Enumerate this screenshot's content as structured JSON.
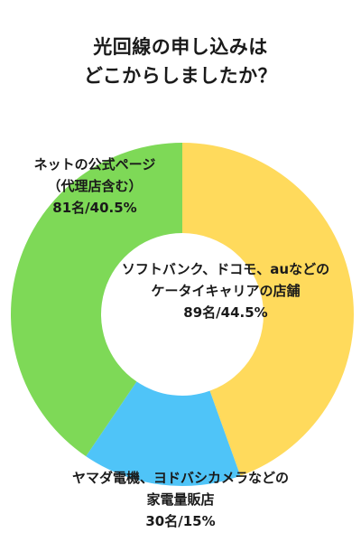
{
  "chart_data": {
    "type": "pie",
    "title_lines": [
      "光回線の申し込みは",
      "どこからしましたか？"
    ],
    "donut": true,
    "start_angle_deg": 0,
    "slices": [
      {
        "name_lines": [
          "ソフトバンク、ドコモ、auなどの",
          "ケータイキャリアの店舗"
        ],
        "count_label": "89名/44.5%",
        "count": 89,
        "percent": 44.5,
        "color": "#FFDA5C"
      },
      {
        "name_lines": [
          "ヤマダ電機、ヨドバシカメラなどの",
          "家電量販店"
        ],
        "count_label": "30名/15%",
        "count": 30,
        "percent": 15,
        "color": "#4FC4F8"
      },
      {
        "name_lines": [
          "ネットの公式ページ",
          "（代理店含む）"
        ],
        "count_label": "81名/40.5%",
        "count": 81,
        "percent": 40.5,
        "color": "#7ED957"
      }
    ]
  }
}
